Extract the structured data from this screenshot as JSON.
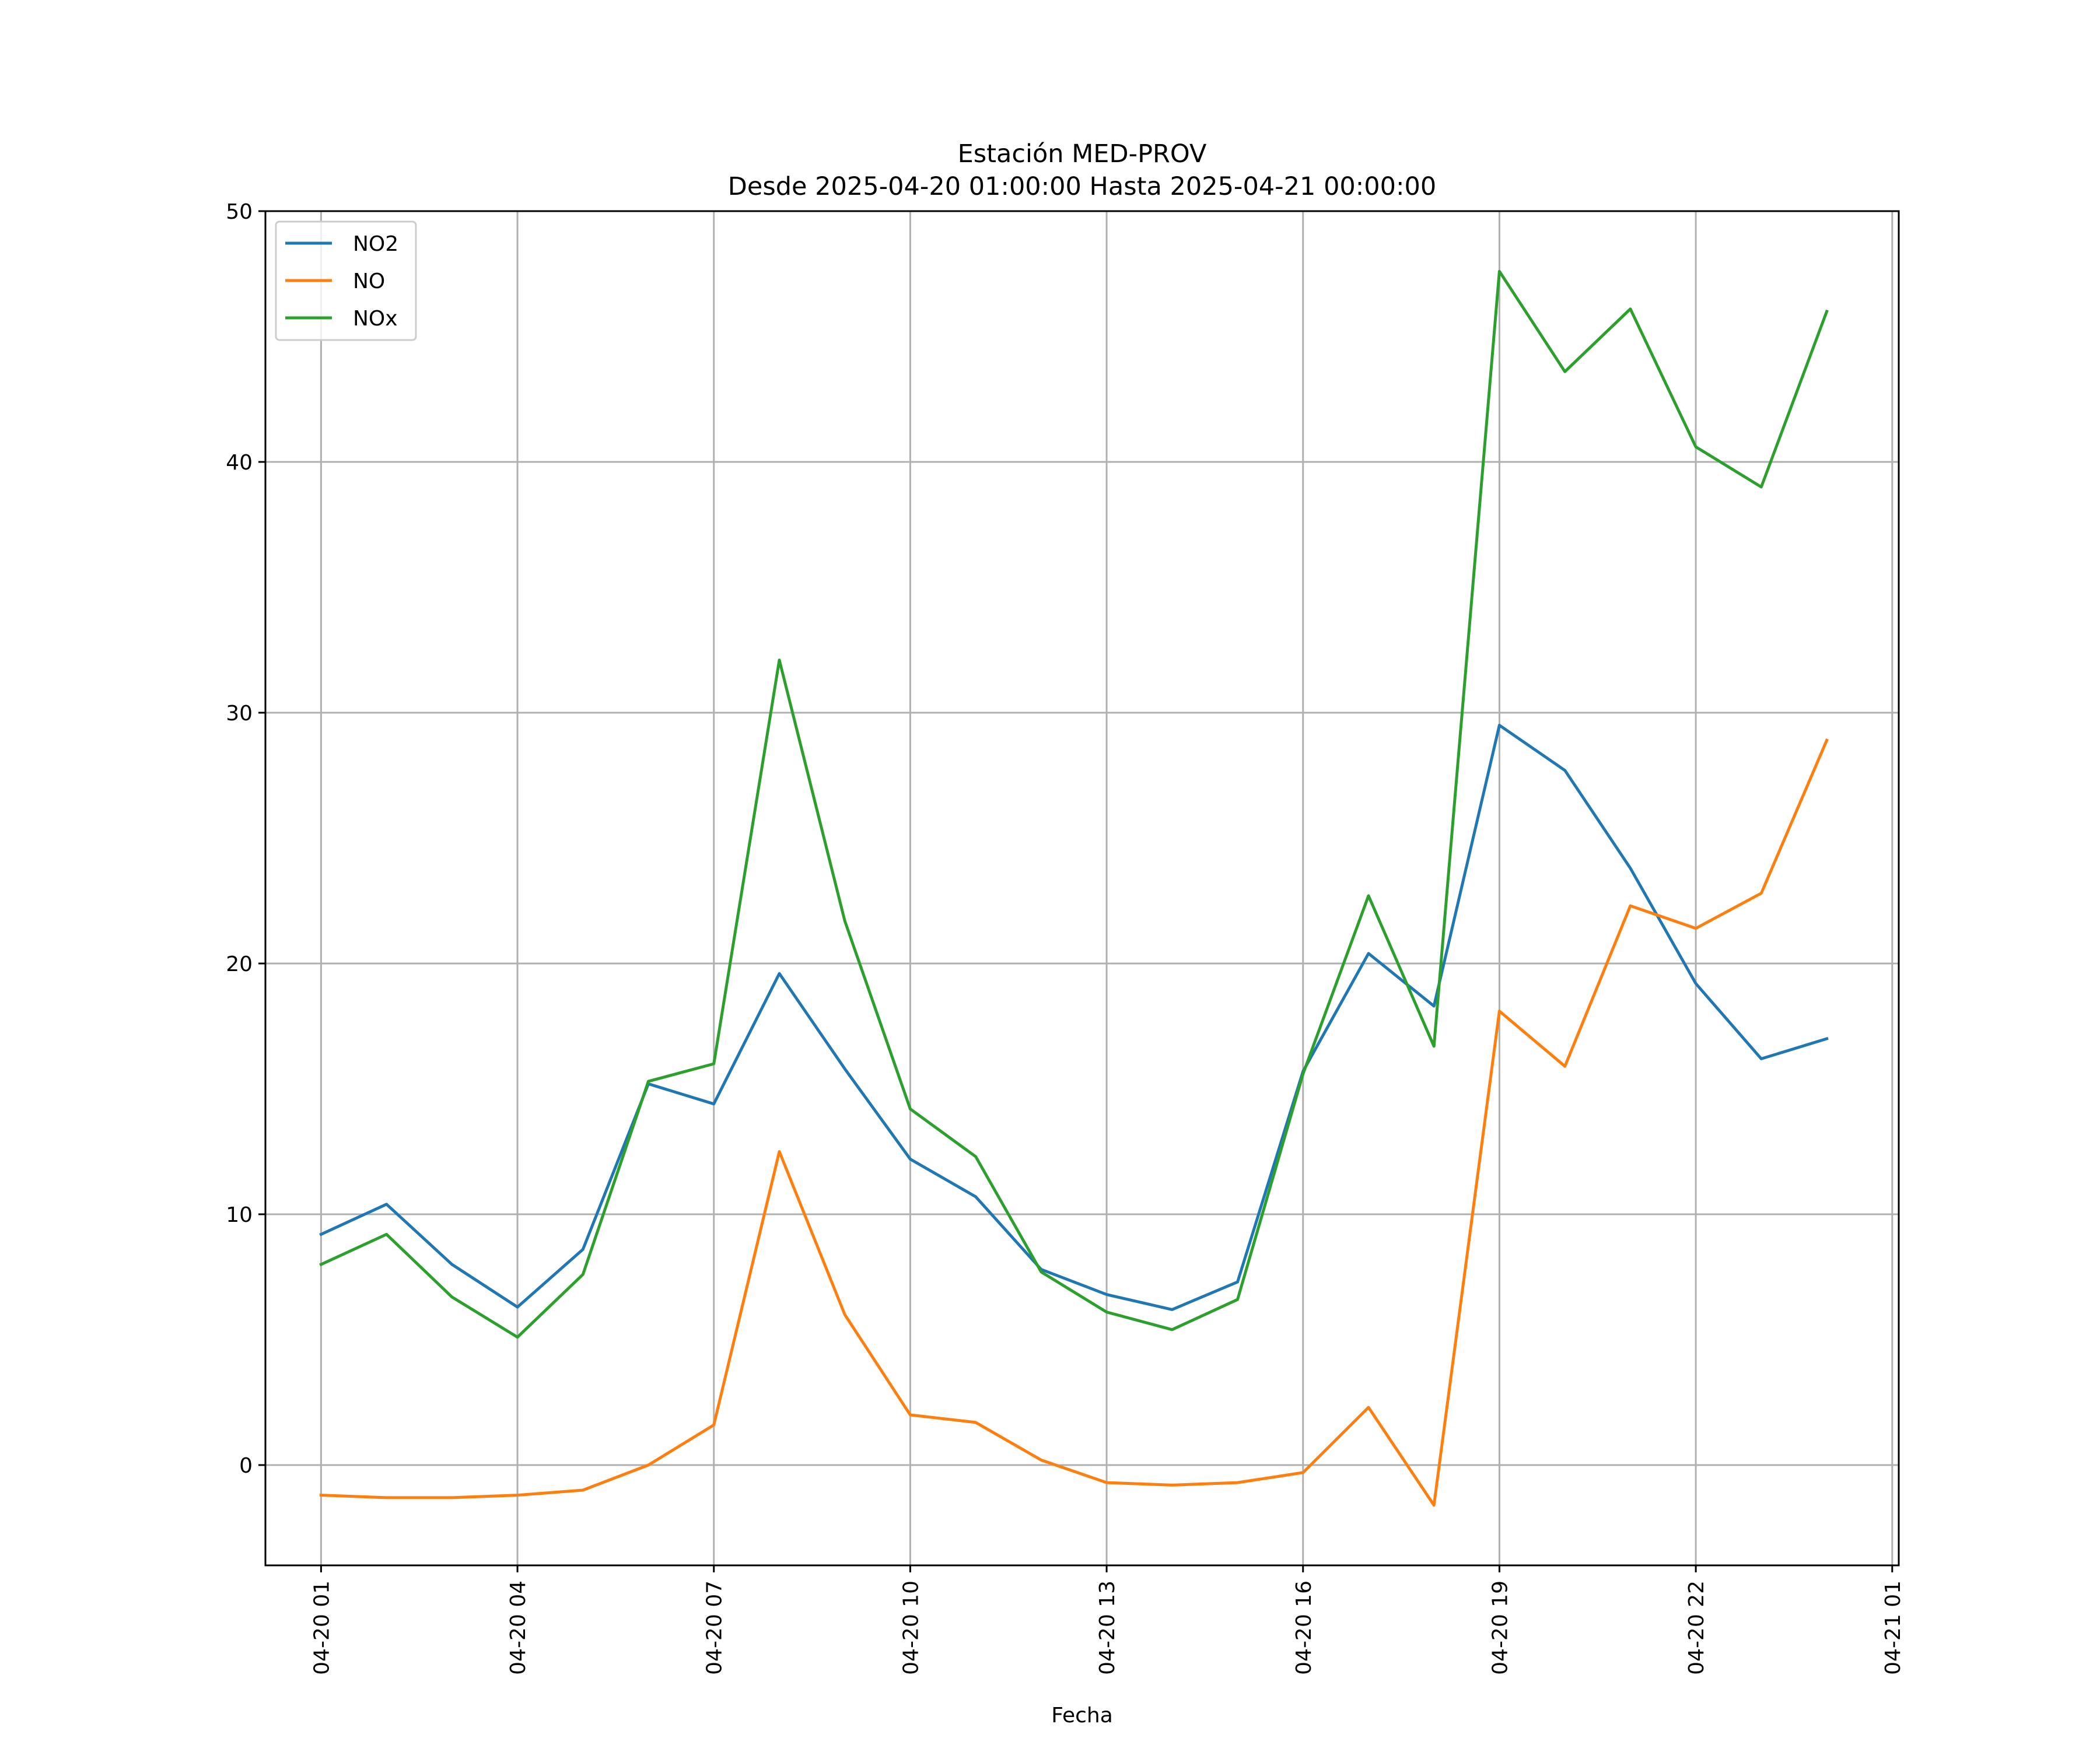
{
  "chart_data": {
    "type": "line",
    "title": "Estación MED-PROV",
    "subtitle": "Desde 2025-04-20 01:00:00 Hasta 2025-04-21 00:00:00",
    "xlabel": "Fecha",
    "ylabel": "",
    "x": [
      "2025-04-20 01:00",
      "2025-04-20 02:00",
      "2025-04-20 03:00",
      "2025-04-20 04:00",
      "2025-04-20 05:00",
      "2025-04-20 06:00",
      "2025-04-20 07:00",
      "2025-04-20 08:00",
      "2025-04-20 09:00",
      "2025-04-20 10:00",
      "2025-04-20 11:00",
      "2025-04-20 12:00",
      "2025-04-20 13:00",
      "2025-04-20 14:00",
      "2025-04-20 15:00",
      "2025-04-20 16:00",
      "2025-04-20 17:00",
      "2025-04-20 18:00",
      "2025-04-20 19:00",
      "2025-04-20 20:00",
      "2025-04-20 21:00",
      "2025-04-20 22:00",
      "2025-04-20 23:00",
      "2025-04-21 00:00"
    ],
    "xticks": [
      {
        "label": "04-20 01",
        "date": "2025-04-20 01:00"
      },
      {
        "label": "04-20 04",
        "date": "2025-04-20 04:00"
      },
      {
        "label": "04-20 07",
        "date": "2025-04-20 07:00"
      },
      {
        "label": "04-20 10",
        "date": "2025-04-20 10:00"
      },
      {
        "label": "04-20 13",
        "date": "2025-04-20 13:00"
      },
      {
        "label": "04-20 16",
        "date": "2025-04-20 16:00"
      },
      {
        "label": "04-20 19",
        "date": "2025-04-20 19:00"
      },
      {
        "label": "04-20 22",
        "date": "2025-04-20 22:00"
      },
      {
        "label": "04-21 01",
        "date": "2025-04-21 01:00"
      }
    ],
    "xlim": [
      "2025-04-20 00:09",
      "2025-04-21 01:06"
    ],
    "yticks": [
      0,
      10,
      20,
      30,
      40,
      50
    ],
    "ylim": [
      -4,
      50
    ],
    "grid": true,
    "legend_position": "upper-left",
    "series": [
      {
        "name": "NO2",
        "color": "#1f77b4",
        "values": [
          9.2,
          10.4,
          8.0,
          6.3,
          8.6,
          15.2,
          14.4,
          19.6,
          15.8,
          12.2,
          10.7,
          7.8,
          6.8,
          6.2,
          7.3,
          15.7,
          20.4,
          18.3,
          29.5,
          27.7,
          23.8,
          19.2,
          16.2,
          17.0
        ]
      },
      {
        "name": "NO",
        "color": "#ff7f0e",
        "values": [
          -1.2,
          -1.3,
          -1.3,
          -1.2,
          -1.0,
          0.0,
          1.6,
          12.5,
          6.0,
          2.0,
          1.7,
          0.2,
          -0.7,
          -0.8,
          -0.7,
          -0.3,
          2.3,
          -1.6,
          18.1,
          15.9,
          22.3,
          21.4,
          22.8,
          28.9
        ]
      },
      {
        "name": "NOx",
        "color": "#2ca02c",
        "values": [
          8.0,
          9.2,
          6.7,
          5.1,
          7.6,
          15.3,
          16.0,
          32.1,
          21.7,
          14.2,
          12.3,
          7.7,
          6.1,
          5.4,
          6.6,
          15.6,
          22.7,
          16.7,
          47.6,
          43.6,
          46.1,
          40.6,
          39.0,
          46.0
        ]
      }
    ]
  }
}
